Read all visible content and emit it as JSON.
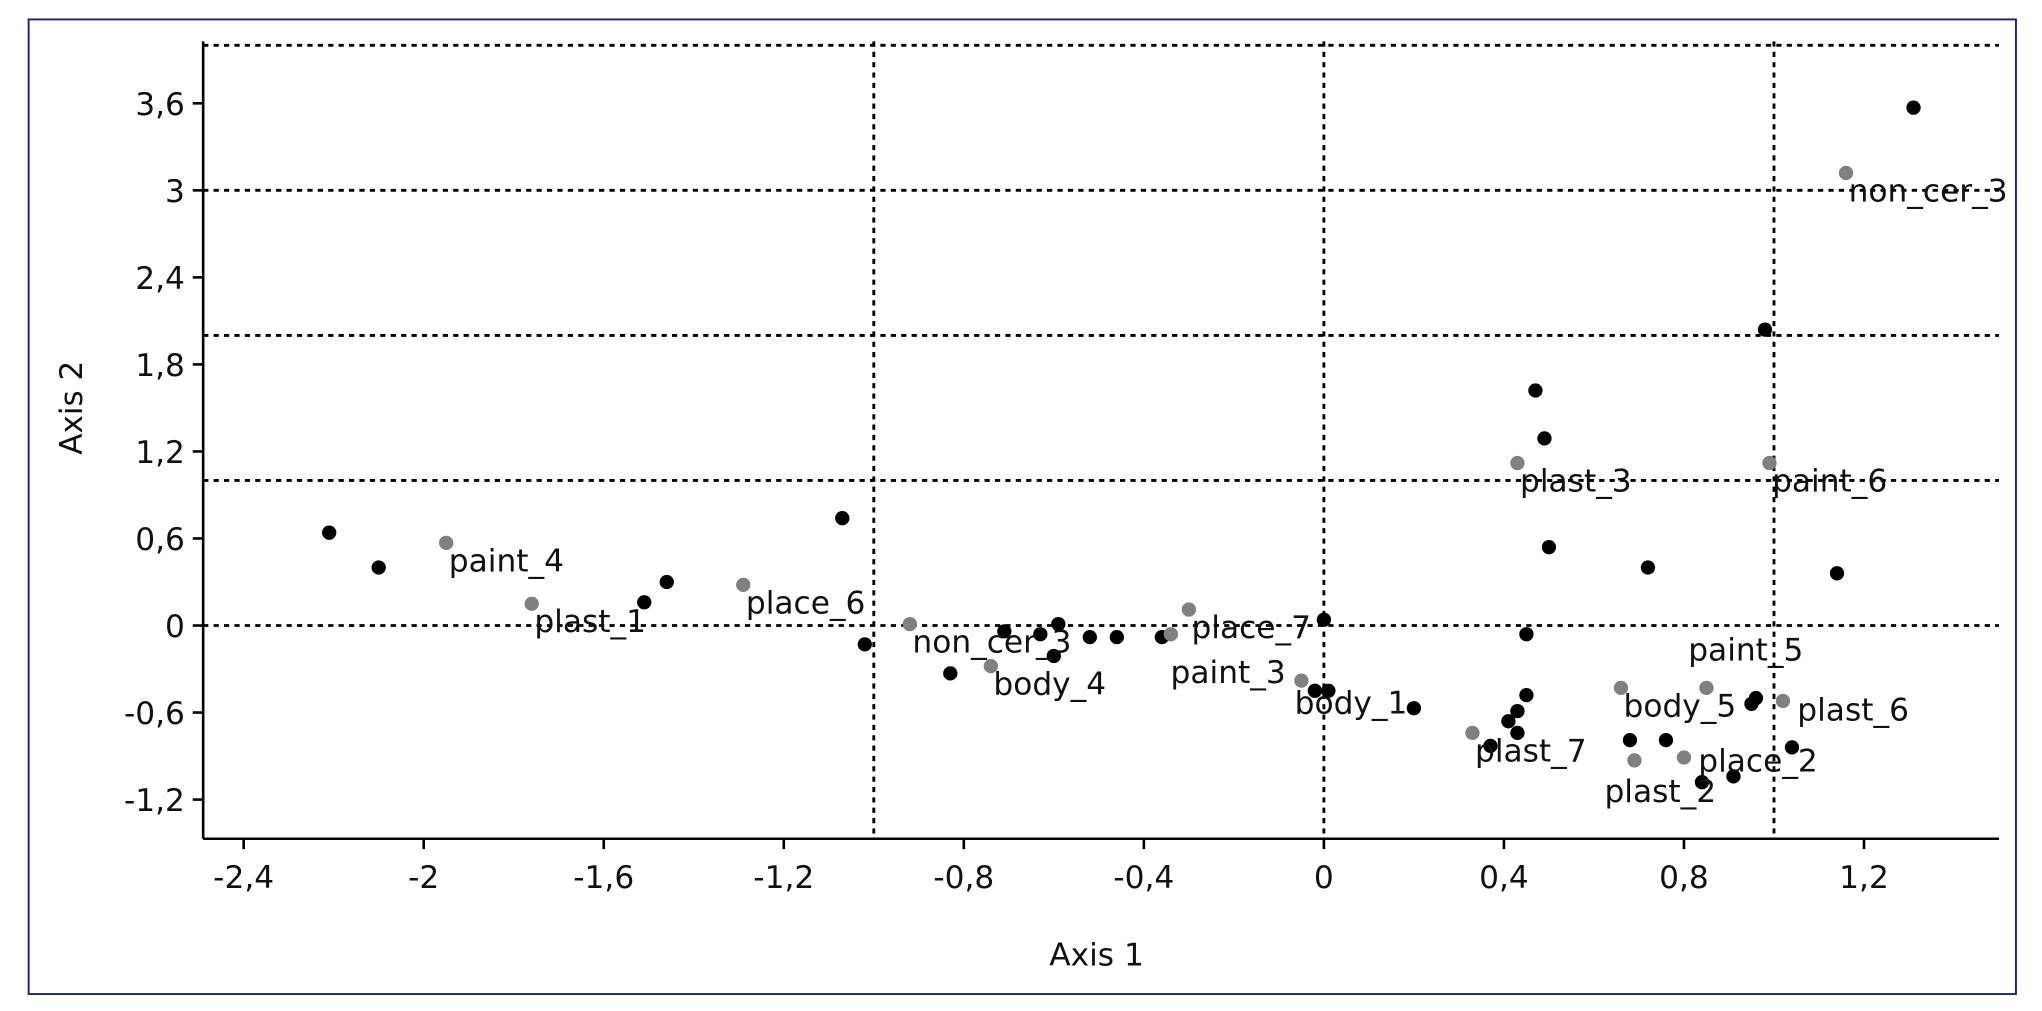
{
  "chart_data": {
    "type": "scatter",
    "xlabel": "Axis 1",
    "ylabel": "Axis 2",
    "xlim": [
      -2.49,
      1.5
    ],
    "ylim": [
      -1.47,
      4.0
    ],
    "xticks": [
      {
        "value": -2.4,
        "label": "-2,4"
      },
      -2,
      {
        "value": -1.6,
        "label": "-1,6"
      },
      {
        "value": -1.2,
        "label": "-1,2"
      },
      {
        "value": -0.8,
        "label": "-0,8"
      },
      {
        "value": -0.4,
        "label": "-0,4"
      },
      0,
      {
        "value": 0.4,
        "label": "0,4"
      },
      {
        "value": 0.8,
        "label": "0,8"
      },
      {
        "value": 1.2,
        "label": "1,2"
      }
    ],
    "yticks": [
      {
        "value": -1.2,
        "label": "-1,2"
      },
      {
        "value": -0.6,
        "label": "-0,6"
      },
      0,
      {
        "value": 0.6,
        "label": "0,6"
      },
      {
        "value": 1.2,
        "label": "1,2"
      },
      {
        "value": 1.8,
        "label": "1,8"
      },
      {
        "value": 2.4,
        "label": "2,4"
      },
      3,
      {
        "value": 3.6,
        "label": "3,6"
      }
    ],
    "hlines": [
      0,
      1,
      2,
      3,
      4
    ],
    "vlines": [
      -1,
      0,
      1
    ],
    "series": [
      {
        "color": "#000000",
        "x": [
          -2.21,
          -2.1,
          -1.51,
          -1.46,
          -1.07,
          -1.02,
          -0.83,
          -0.71,
          -0.63,
          -0.59,
          -0.6,
          -0.52,
          -0.46,
          -0.36,
          -0.02,
          0.01,
          0.0,
          0.2,
          0.37,
          0.41,
          0.43,
          0.43,
          0.45,
          0.45,
          0.47,
          0.49,
          0.5,
          0.68,
          0.72,
          0.76,
          0.84,
          0.91,
          0.95,
          0.96,
          0.98,
          1.04,
          1.14,
          1.31
        ],
        "y": [
          0.64,
          0.4,
          0.16,
          0.3,
          0.74,
          -0.13,
          -0.33,
          -0.04,
          -0.06,
          0.01,
          -0.21,
          -0.08,
          -0.08,
          -0.08,
          -0.45,
          -0.45,
          0.04,
          -0.57,
          -0.83,
          -0.66,
          -0.59,
          -0.74,
          -0.48,
          -0.06,
          1.62,
          1.29,
          0.54,
          -0.79,
          0.4,
          -0.79,
          -1.08,
          -1.04,
          -0.54,
          -0.5,
          2.04,
          -0.84,
          0.36,
          3.57
        ],
        "labels": [
          null,
          null,
          null,
          null,
          null,
          null,
          null,
          null,
          null,
          null,
          null,
          null,
          null,
          null,
          null,
          null,
          null,
          "body_1",
          null,
          null,
          null,
          null,
          null,
          null,
          null,
          null,
          null,
          null,
          null,
          null,
          null,
          null,
          null,
          null,
          null,
          null,
          null,
          null
        ]
      },
      {
        "color": "#808080",
        "x": [
          -1.95,
          -1.76,
          -1.29,
          -0.92,
          -0.74,
          -0.34,
          -0.3,
          -0.05,
          0.33,
          0.43,
          0.66,
          0.69,
          0.8,
          0.85,
          0.99,
          1.02,
          1.16
        ],
        "y": [
          0.57,
          0.15,
          0.28,
          0.01,
          -0.28,
          -0.06,
          0.11,
          -0.38,
          -0.74,
          1.12,
          -0.43,
          -0.93,
          -0.91,
          -0.43,
          1.12,
          -0.52,
          3.12
        ],
        "labels": [
          "paint_4",
          "plast_1",
          "place_6",
          "non_cer_3",
          "body_4",
          null,
          "place_7",
          "paint_3",
          "plast_7",
          "plast_3",
          "body_5",
          "plast_2",
          "place_2",
          "paint_5",
          "paint_6",
          "plast_6",
          "non_cer_3"
        ]
      }
    ]
  }
}
